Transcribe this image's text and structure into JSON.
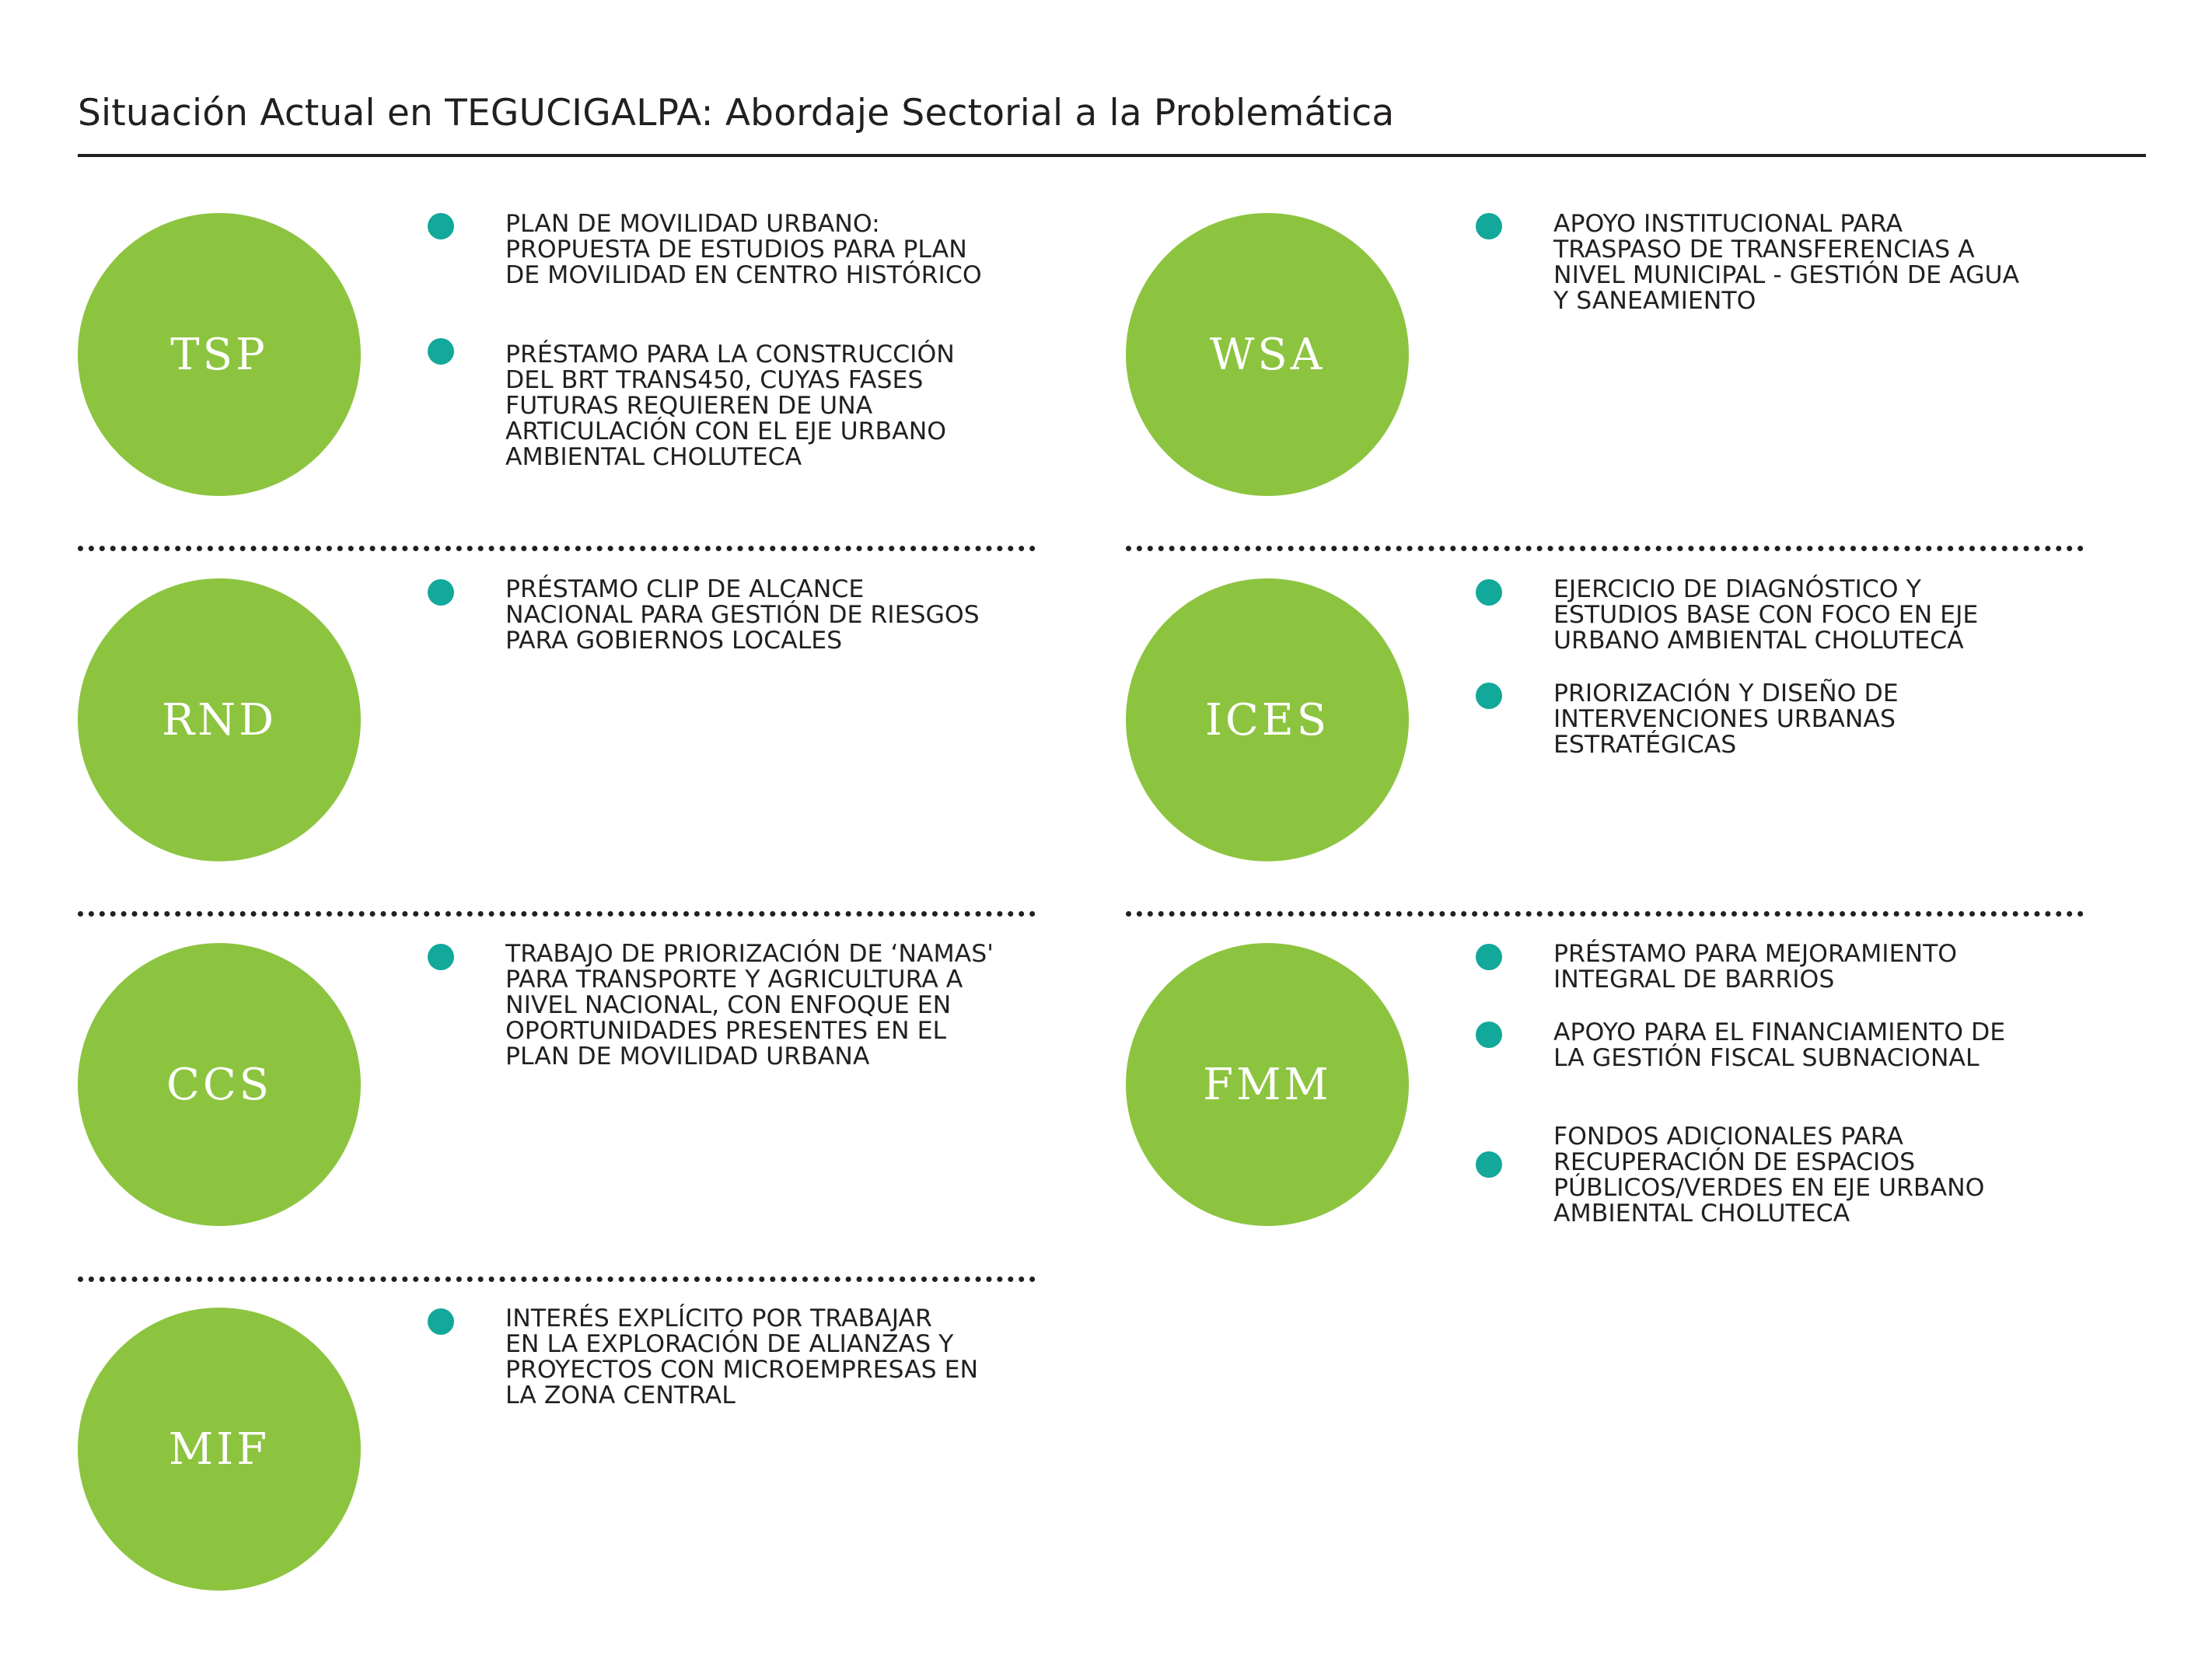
{
  "title": "Situación Actual en TEGUCIGALPA: Abordaje Sectorial a la Problemática",
  "colors": {
    "circle": "#8cc43f",
    "bullet": "#12a89a",
    "text": "#231f20"
  },
  "sectors": {
    "tsp": {
      "label": "TSP",
      "items": [
        "PLAN DE MOVILIDAD URBANO:\nPROPUESTA DE ESTUDIOS PARA PLAN\nDE MOVILIDAD EN CENTRO HISTÓRICO",
        "PRÉSTAMO PARA LA CONSTRUCCIÓN\nDEL BRT TRANS450, CUYAS FASES\nFUTURAS REQUIEREN DE UNA\nARTICULACIÓN CON EL EJE URBANO\nAMBIENTAL CHOLUTECA"
      ]
    },
    "wsa": {
      "label": "WSA",
      "items": [
        "APOYO INSTITUCIONAL PARA\nTRASPASO DE TRANSFERENCIAS A\nNIVEL MUNICIPAL - GESTIÓN DE AGUA\nY SANEAMIENTO"
      ]
    },
    "rnd": {
      "label": "RND",
      "items": [
        "PRÉSTAMO CLIP DE ALCANCE\nNACIONAL PARA GESTIÓN DE RIESGOS\nPARA GOBIERNOS LOCALES"
      ]
    },
    "ices": {
      "label": "ICES",
      "items": [
        "EJERCICIO DE DIAGNÓSTICO Y\nESTUDIOS BASE CON FOCO EN EJE\nURBANO AMBIENTAL CHOLUTECA",
        "PRIORIZACIÓN Y DISEÑO DE\nINTERVENCIONES URBANAS\nESTRATÉGICAS"
      ]
    },
    "ccs": {
      "label": "CCS",
      "items": [
        "TRABAJO DE PRIORIZACIÓN DE ‘NAMAS'\nPARA TRANSPORTE Y AGRICULTURA A\nNIVEL NACIONAL, CON ENFOQUE EN\nOPORTUNIDADES PRESENTES EN EL\nPLAN DE MOVILIDAD URBANA"
      ]
    },
    "fmm": {
      "label": "FMM",
      "items": [
        "PRÉSTAMO PARA MEJORAMIENTO\nINTEGRAL DE BARRIOS",
        "APOYO PARA EL FINANCIAMIENTO DE\nLA GESTIÓN FISCAL SUBNACIONAL",
        "FONDOS ADICIONALES PARA\nRECUPERACIÓN DE ESPACIOS\nPÚBLICOS/VERDES EN EJE URBANO\nAMBIENTAL CHOLUTECA"
      ]
    },
    "mif": {
      "label": "MIF",
      "items": [
        "INTERÉS EXPLÍCITO POR TRABAJAR\nEN LA EXPLORACIÓN DE ALIANZAS Y\nPROYECTOS CON MICROEMPRESAS EN\nLA ZONA CENTRAL"
      ]
    }
  }
}
